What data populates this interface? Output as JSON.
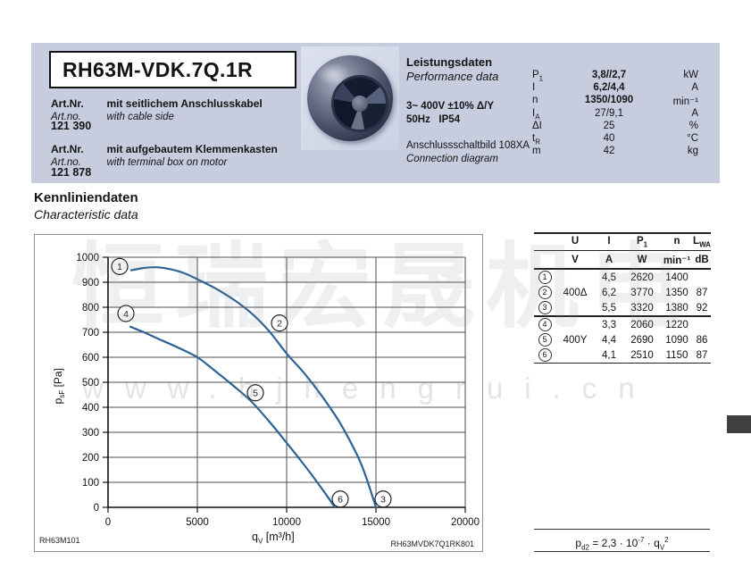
{
  "colors": {
    "header_bg": "#c7ccdf",
    "curve": "#2d6394",
    "side_tab": "#3f3f3f"
  },
  "watermark": {
    "line1": "恒瑞宏晟机电",
    "line2": "www.bjhengrui.cn"
  },
  "header": {
    "model": "RH63M-VDK.7Q.1R",
    "art1_label_de": "Art.Nr.",
    "art1_desc_de": "mit seitlichem Anschlusskabel",
    "art1_label_en": "Art.no.",
    "art1_desc_en": "with cable side",
    "art1_number": "121 390",
    "art2_label_de": "Art.Nr.",
    "art2_desc_de": "mit aufgebautem Klemmenkasten",
    "art2_label_en": "Art.no.",
    "art2_desc_en": "with terminal box on motor",
    "art2_number": "121 878",
    "perf_title_de": "Leistungsdaten",
    "perf_title_en": "Performance data",
    "voltage": "3~ 400V ±10% Δ/Y",
    "freq_ip": "50Hz   IP54",
    "conn_de": "Anschlussschaltbild 108XA",
    "conn_en": "Connection diagram",
    "params": [
      {
        "sym": "P",
        "sub": "1",
        "value": "3,8//2,7",
        "unit": "kW"
      },
      {
        "sym": "I",
        "sub": "",
        "value": "6,2/4,4",
        "unit": "A"
      },
      {
        "sym": "n",
        "sub": "",
        "value": "1350/1090",
        "unit": "min⁻¹"
      },
      {
        "sym": "I",
        "sub": "A",
        "value": "27/9,1",
        "unit": "A"
      },
      {
        "sym": "ΔI",
        "sub": "",
        "value": "25",
        "unit": "%"
      },
      {
        "sym": "t",
        "sub": "R",
        "value": "40",
        "unit": "°C"
      },
      {
        "sym": "m",
        "sub": "",
        "value": "42",
        "unit": "kg"
      }
    ]
  },
  "section": {
    "title_de": "Kennliniendaten",
    "title_en": "Characteristic data"
  },
  "chart_data": {
    "type": "line",
    "title": "",
    "xlabel_base": "q",
    "xlabel_sub": "V",
    "xlabel_rest": " [m³/h]",
    "ylabel_base": "p",
    "ylabel_sub": "sF",
    "ylabel_rest": " [Pa]",
    "xlim": [
      0,
      20000
    ],
    "ylim": [
      0,
      1000
    ],
    "x_ticks": [
      0,
      5000,
      10000,
      15000,
      20000
    ],
    "y_ticks": [
      0,
      100,
      200,
      300,
      400,
      500,
      600,
      700,
      800,
      900,
      1000
    ],
    "grid": true,
    "legend_position": "none",
    "curve_color": "#2d6394",
    "series": [
      {
        "name": "400Δ (operating points 1-2-3)",
        "points": [
          [
            1300,
            948
          ],
          [
            2000,
            957
          ],
          [
            2700,
            960
          ],
          [
            3500,
            952
          ],
          [
            4200,
            938
          ],
          [
            5000,
            912
          ],
          [
            6000,
            876
          ],
          [
            7000,
            832
          ],
          [
            8000,
            778
          ],
          [
            9000,
            706
          ],
          [
            10000,
            615
          ],
          [
            11000,
            535
          ],
          [
            12000,
            442
          ],
          [
            13000,
            336
          ],
          [
            14000,
            201
          ],
          [
            14500,
            110
          ],
          [
            15000,
            0
          ]
        ]
      },
      {
        "name": "400Y (operating points 4-5-6)",
        "points": [
          [
            1250,
            722
          ],
          [
            2000,
            700
          ],
          [
            3000,
            668
          ],
          [
            4000,
            636
          ],
          [
            5000,
            600
          ],
          [
            6000,
            545
          ],
          [
            7000,
            487
          ],
          [
            8000,
            425
          ],
          [
            9000,
            345
          ],
          [
            10000,
            258
          ],
          [
            11000,
            168
          ],
          [
            12000,
            72
          ],
          [
            12700,
            0
          ]
        ]
      }
    ],
    "point_labels": [
      {
        "label": "1",
        "x": 650,
        "y": 963
      },
      {
        "label": "2",
        "x": 9600,
        "y": 737
      },
      {
        "label": "3",
        "x": 15400,
        "y": 33
      },
      {
        "label": "4",
        "x": 1000,
        "y": 775
      },
      {
        "label": "5",
        "x": 8250,
        "y": 458
      },
      {
        "label": "6",
        "x": 13000,
        "y": 33
      }
    ],
    "footer_left": "RH63M101",
    "footer_right": "RH63MVDK7Q1RK801"
  },
  "table": {
    "headers": [
      {
        "base": "U",
        "sub": ""
      },
      {
        "base": "I",
        "sub": ""
      },
      {
        "base": "P",
        "sub": "1"
      },
      {
        "base": "n",
        "sub": ""
      },
      {
        "base": "L",
        "sub": "WA"
      }
    ],
    "units": [
      "V",
      "A",
      "W",
      "min⁻¹",
      "dB"
    ],
    "rows": [
      {
        "num": "1",
        "u": "",
        "i": "4,5",
        "p": "2620",
        "n": "1400",
        "lwa": ""
      },
      {
        "num": "2",
        "u": "400Δ",
        "i": "6,2",
        "p": "3770",
        "n": "1350",
        "lwa": "87"
      },
      {
        "num": "3",
        "u": "",
        "i": "5,5",
        "p": "3320",
        "n": "1380",
        "lwa": "92"
      },
      {
        "num": "4",
        "u": "",
        "i": "3,3",
        "p": "2060",
        "n": "1220",
        "lwa": ""
      },
      {
        "num": "5",
        "u": "400Y",
        "i": "4,4",
        "p": "2690",
        "n": "1090",
        "lwa": "86"
      },
      {
        "num": "6",
        "u": "",
        "i": "4,1",
        "p": "2510",
        "n": "1150",
        "lwa": "87"
      }
    ],
    "formula": {
      "base": "p",
      "sub": "d2",
      "eq": " = 2,3 · 10",
      "exp": "-7",
      "mul": " · q",
      "sub2": "V",
      "exp2": "2"
    }
  }
}
